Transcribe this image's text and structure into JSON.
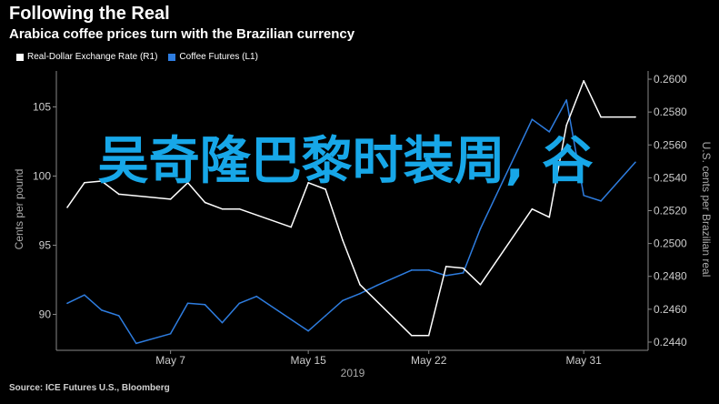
{
  "header": {
    "title": "Following the Real",
    "subtitle": "Arabica coffee prices turn with the Brazilian currency"
  },
  "source": "Source: ICE Futures U.S., Bloomberg",
  "overlay_text": "吴奇隆巴黎时装周, 谷",
  "colors": {
    "background": "#000000",
    "fx_line": "#ffffff",
    "coffee_line": "#2e7de0",
    "axis": "#888888",
    "overlay": "#17a7e8"
  },
  "chart_data": {
    "type": "line",
    "title": "Following the Real",
    "subtitle": "Arabica coffee prices turn with the Brazilian currency",
    "legend_position": "top-left",
    "grid": false,
    "x_ticks": [
      "May 7",
      "May 15",
      "May 22",
      "May 31"
    ],
    "x_year": "2019",
    "x_range": [
      1,
      34
    ],
    "left_axis": {
      "label": "Cents per pound",
      "range": [
        87.4,
        107.6
      ],
      "ticks": [
        "90",
        "95",
        "100",
        "105"
      ],
      "tick_values": [
        90,
        95,
        100,
        105
      ]
    },
    "right_axis": {
      "label": "U.S. cents per Brazilian real",
      "range": [
        0.2435,
        0.2605
      ],
      "ticks": [
        "0.2440",
        "0.2460",
        "0.2480",
        "0.2500",
        "0.2520",
        "0.2540",
        "0.2560",
        "0.2580",
        "0.2600"
      ],
      "tick_values": [
        0.244,
        0.246,
        0.248,
        0.25,
        0.252,
        0.254,
        0.256,
        0.258,
        0.26
      ]
    },
    "series": [
      {
        "name": "Real-Dollar Exchange Rate (R1)",
        "axis": "right",
        "x": [
          1,
          2,
          3,
          4,
          7,
          8,
          9,
          10,
          11,
          14,
          15,
          16,
          17,
          18,
          21,
          22,
          23,
          24,
          25,
          28,
          29,
          30,
          31,
          32,
          34
        ],
        "values": [
          0.2522,
          0.2537,
          0.2538,
          0.253,
          0.2527,
          0.2537,
          0.2525,
          0.2521,
          0.2521,
          0.251,
          0.2537,
          0.2533,
          0.2502,
          0.2475,
          0.2444,
          0.2444,
          0.2486,
          0.2485,
          0.2475,
          0.2521,
          0.2516,
          0.2572,
          0.2599,
          0.2577,
          0.2577
        ]
      },
      {
        "name": "Coffee Futures (L1)",
        "axis": "left",
        "x": [
          1,
          2,
          3,
          4,
          5,
          7,
          8,
          9,
          10,
          11,
          12,
          15,
          16,
          17,
          18,
          19,
          21,
          22,
          23,
          24,
          25,
          28,
          29,
          30,
          31,
          32,
          34
        ],
        "values": [
          90.8,
          91.4,
          90.3,
          89.9,
          87.9,
          88.6,
          90.8,
          90.7,
          89.4,
          90.8,
          91.3,
          88.8,
          89.9,
          91.0,
          91.5,
          92.1,
          93.2,
          93.2,
          92.8,
          93.0,
          96.2,
          104.1,
          103.2,
          105.5,
          98.6,
          98.2,
          101.0
        ]
      }
    ]
  }
}
